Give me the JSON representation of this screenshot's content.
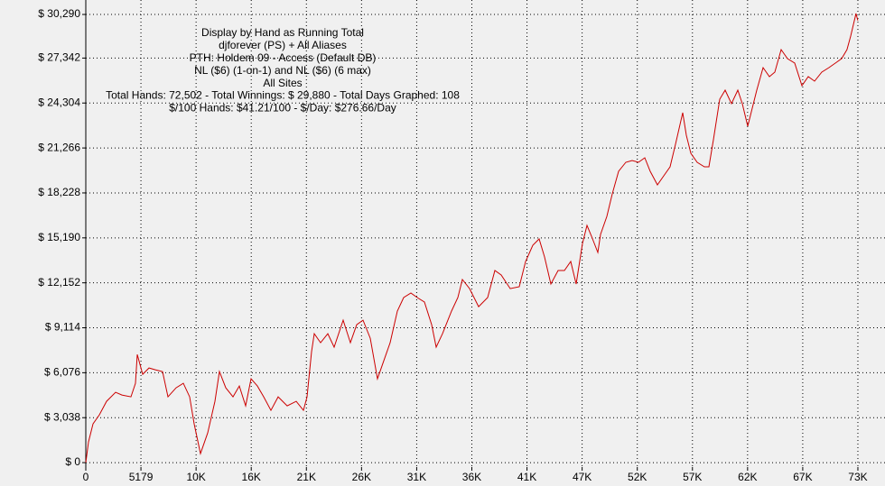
{
  "chart_data": {
    "type": "line",
    "title_lines": [
      "Display by Hand as Running Total",
      "djforever (PS) + All Aliases",
      "PTH: Holdem 09 - Access (Default DB)",
      "NL ($6) (1-on-1) and NL ($6) (6 max)",
      "All Sites",
      "Total Hands: 72,502 - Total Winnings: $ 29,880 - Total Days Graphed: 108",
      "$/100 Hands: $41.21/100 - $/Day: $276.66/Day"
    ],
    "color": "#cc0000",
    "grid": true,
    "x": [
      0,
      254,
      678,
      1272,
      1950,
      2798,
      3392,
      4240,
      4664,
      4834,
      5342,
      5936,
      6530,
      7208,
      7717,
      8480,
      9158,
      9752,
      10176,
      10770,
      11448,
      12126,
      12550,
      13144,
      13822,
      14416,
      15010,
      15518,
      16112,
      16706,
      17384,
      18062,
      18910,
      19758,
      20437,
      20776,
      21200,
      21454,
      22048,
      22726,
      23320,
      24168,
      24846,
      25440,
      26034,
      26712,
      27390,
      27984,
      28578,
      29256,
      29850,
      30528,
      31122,
      31800,
      32478,
      32902,
      33496,
      34344,
      34938,
      35362,
      36040,
      36888,
      37736,
      38414,
      39008,
      39856,
      40704,
      41298,
      41976,
      42570,
      43078,
      43672,
      44350,
      44944,
      45538,
      46046,
      46640,
      47064,
      47488,
      48082,
      48336,
      48930,
      49438,
      50032,
      50710,
      51304,
      51898,
      52492,
      53000,
      53679,
      54272,
      54866,
      55374,
      56053,
      56392,
      56816,
      57409,
      58088,
      58512,
      58936,
      59530,
      60038,
      60632,
      61226,
      61650,
      62158,
      62582,
      63006,
      63600,
      64194,
      64702,
      65296,
      65890,
      66568,
      67246,
      67840,
      68434,
      69112,
      69790,
      70384,
      70978,
      71486,
      71826,
      72334,
      72502
    ],
    "values": [
      0,
      1402,
      2621,
      3231,
      4145,
      4754,
      4571,
      4450,
      5364,
      7314,
      5973,
      6400,
      6278,
      6156,
      4450,
      5059,
      5364,
      4450,
      2621,
      610,
      2011,
      4145,
      6156,
      5059,
      4450,
      5181,
      3840,
      5668,
      5181,
      4450,
      3535,
      4450,
      3840,
      4145,
      3535,
      4450,
      7497,
      8716,
      8106,
      8716,
      7802,
      9630,
      8106,
      9325,
      9630,
      8411,
      5668,
      6887,
      8106,
      10240,
      11154,
      11459,
      11154,
      10849,
      9325,
      7802,
      8716,
      10240,
      11154,
      12373,
      11763,
      10544,
      11154,
      12982,
      12678,
      11763,
      11885,
      13592,
      14689,
      15116,
      13897,
      12068,
      12982,
      12982,
      13592,
      12068,
      14811,
      16030,
      15298,
      14201,
      15420,
      16639,
      18163,
      19687,
      20296,
      20418,
      20296,
      20601,
      19687,
      18773,
      19382,
      19992,
      21515,
      23649,
      22125,
      20906,
      20296,
      19992,
      19992,
      21820,
      24563,
      25172,
      24258,
      25172,
      24258,
      22734,
      23954,
      25172,
      26696,
      26087,
      26391,
      27915,
      27306,
      27001,
      25477,
      26087,
      25782,
      26391,
      26696,
      27001,
      27306,
      27915,
      28829,
      30353,
      29880
    ],
    "xlim": [
      0,
      73000
    ],
    "xticks": [
      0,
      5179,
      {
        "value": 10358,
        "label": "10K"
      },
      {
        "value": 15537,
        "label": "16K"
      },
      {
        "value": 20716,
        "label": "21K"
      },
      {
        "value": 25895,
        "label": "26K"
      },
      {
        "value": 31074,
        "label": "31K"
      },
      {
        "value": 36253,
        "label": "36K"
      },
      {
        "value": 41432,
        "label": "41K"
      },
      {
        "value": 46611,
        "label": "47K"
      },
      {
        "value": 51790,
        "label": "52K"
      },
      {
        "value": 56969,
        "label": "57K"
      },
      {
        "value": 62148,
        "label": "62K"
      },
      {
        "value": 67327,
        "label": "67K"
      },
      {
        "value": 72506,
        "label": "73K"
      }
    ],
    "ylim": [
      -300,
      30700
    ],
    "yticks": [
      {
        "value": 0,
        "label": "$ 0"
      },
      {
        "value": 3038,
        "label": "$ 3,038"
      },
      {
        "value": 6076,
        "label": "$ 6,076"
      },
      {
        "value": 9114,
        "label": "$ 9,114"
      },
      {
        "value": 12152,
        "label": "$ 12,152"
      },
      {
        "value": 15190,
        "label": "$ 15,190"
      },
      {
        "value": 18228,
        "label": "$ 18,228"
      },
      {
        "value": 21266,
        "label": "$ 21,266"
      },
      {
        "value": 24304,
        "label": "$ 24,304"
      },
      {
        "value": 27342,
        "label": "$ 27,342"
      },
      {
        "value": 30290,
        "label": "$ 30,290"
      }
    ]
  }
}
